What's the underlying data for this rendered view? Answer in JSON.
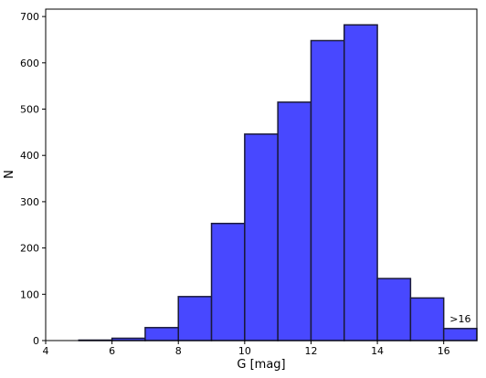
{
  "chart_data": {
    "type": "histogram",
    "bins": [
      4,
      5,
      6,
      7,
      8,
      9,
      10,
      11,
      12,
      13,
      14,
      15,
      16,
      17
    ],
    "values": [
      0,
      1,
      5,
      28,
      95,
      253,
      446,
      515,
      648,
      682,
      134,
      92,
      26
    ],
    "color": "#4848ff",
    "edgecolor": "#1a1a3a",
    "xlabel": "G [mag]",
    "ylabel": "N",
    "annotation": ">16",
    "xlim": [
      4,
      17
    ],
    "xticks": [
      4,
      6,
      8,
      10,
      12,
      14,
      16
    ],
    "ylim": [
      0,
      716
    ],
    "yticks": [
      0,
      100,
      200,
      300,
      400,
      500,
      600,
      700
    ]
  }
}
